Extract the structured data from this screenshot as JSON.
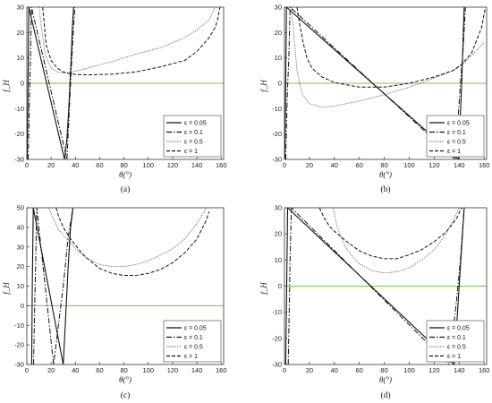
{
  "colors": {
    "zero_line": "#7cc04a",
    "axis": "#333333"
  },
  "legend_entries": [
    "ε = 0.05",
    "ε = 0.1",
    "ε = 0.5",
    "ε = 1"
  ],
  "chart_data": [
    {
      "type": "line",
      "panel_label": "(a)",
      "xlabel": "θ(°)",
      "ylabel": "f_H",
      "xlim": [
        0,
        162
      ],
      "ylim": [
        -30,
        30
      ],
      "xticks": [
        "0",
        "20",
        "40",
        "60",
        "80",
        "100",
        "120",
        "140",
        "160"
      ],
      "yticks": [
        "-30",
        "-20",
        "-10",
        "0",
        "10",
        "20",
        "30"
      ],
      "zero_line": true,
      "grid": false,
      "legend_position": "bottom-right",
      "series": [
        {
          "name": "ε = 0.05",
          "x": [
            0.2,
            0.8,
            1.6,
            31,
            33,
            34.5,
            35.5,
            36.5,
            37.5,
            38.5
          ],
          "y": [
            -30,
            -10,
            30,
            -30,
            -22,
            -10,
            0,
            10,
            22,
            30
          ]
        },
        {
          "name": "ε = 0.1",
          "x": [
            1,
            1.3,
            2.0,
            3.0,
            3.8,
            33,
            34.5,
            35.5,
            36.5,
            38,
            39.5
          ],
          "y": [
            -30,
            -25,
            -10,
            10,
            30,
            -30,
            -15,
            -5,
            5,
            18,
            30
          ]
        },
        {
          "name": "ε = 0.5",
          "x": [
            10,
            12,
            15,
            18,
            20,
            25,
            30,
            35,
            50,
            70,
            90,
            110,
            130,
            140,
            145,
            150,
            155
          ],
          "y": [
            30,
            22,
            12,
            8,
            6,
            4.5,
            4,
            4.2,
            6,
            8.5,
            11.5,
            14,
            18,
            21,
            23,
            25,
            30
          ]
        },
        {
          "name": "ε = 1",
          "x": [
            13,
            16,
            20,
            25,
            30,
            35,
            40,
            50,
            70,
            90,
            110,
            130,
            140,
            150,
            155,
            157,
            159
          ],
          "y": [
            30,
            15,
            9,
            6,
            4.5,
            3.8,
            3.5,
            3.3,
            3.6,
            4.5,
            6.5,
            9,
            12.5,
            18,
            22,
            25,
            30
          ]
        }
      ]
    },
    {
      "type": "line",
      "panel_label": "(b)",
      "xlabel": "θ(°)",
      "ylabel": "f_H",
      "xlim": [
        0,
        162
      ],
      "ylim": [
        -30,
        30
      ],
      "xticks": [
        "0",
        "20",
        "40",
        "60",
        "80",
        "100",
        "120",
        "140",
        "160"
      ],
      "yticks": [
        "-30",
        "-20",
        "-10",
        "0",
        "10",
        "20",
        "30"
      ],
      "zero_line": true,
      "grid": false,
      "legend_position": "bottom-right",
      "series": [
        {
          "name": "ε = 0.05",
          "x": [
            0.2,
            0.8,
            1.6,
            139.5,
            141,
            142,
            143,
            144
          ],
          "y": [
            -30,
            -10,
            30,
            -30,
            -12,
            0,
            15,
            30
          ]
        },
        {
          "name": "ε = 0.1",
          "x": [
            1,
            1.5,
            2.2,
            3.5,
            4.5,
            137,
            139,
            141,
            143,
            145
          ],
          "y": [
            -30,
            -20,
            -5,
            10,
            30,
            -30,
            -15,
            0,
            12,
            30
          ]
        },
        {
          "name": "ε = 0.5",
          "x": [
            5.5,
            7,
            10,
            14,
            20,
            30,
            40,
            60,
            80,
            100,
            120,
            135,
            142,
            150,
            160
          ],
          "y": [
            30,
            22,
            5,
            -4,
            -8,
            -9.5,
            -9,
            -7,
            -4.5,
            -1.5,
            2,
            5,
            7,
            11,
            16
          ]
        },
        {
          "name": "ε = 1",
          "x": [
            10,
            12,
            15,
            18,
            22,
            30,
            40,
            60,
            80,
            100,
            120,
            135,
            142,
            150,
            158,
            161
          ],
          "y": [
            30,
            24,
            16,
            10,
            6,
            2.5,
            0.3,
            -1.5,
            -1.5,
            0,
            2.5,
            5,
            7.5,
            12,
            22,
            30
          ]
        }
      ]
    },
    {
      "type": "line",
      "panel_label": "(c)",
      "xlabel": "θ(°)",
      "ylabel": "f_H",
      "xlim": [
        0,
        162
      ],
      "ylim": [
        -30,
        50
      ],
      "xticks": [
        "0",
        "20",
        "40",
        "60",
        "80",
        "100",
        "120",
        "140",
        "160"
      ],
      "yticks": [
        "-30",
        "-20",
        "-10",
        "0",
        "10",
        "20",
        "30",
        "40",
        "50"
      ],
      "zero_line": true,
      "grid": false,
      "legend_position": "bottom-right",
      "series": [
        {
          "name": "ε = 0.05",
          "x": [
            4,
            4.5,
            5.3,
            30,
            32,
            34,
            36,
            38
          ],
          "y": [
            -30,
            10,
            50,
            -30,
            -5,
            20,
            40,
            50
          ]
        },
        {
          "name": "ε = 0.1",
          "x": [
            5.5,
            6.5,
            7.2,
            8.2,
            22,
            26,
            30,
            34,
            38
          ],
          "y": [
            -30,
            0,
            20,
            50,
            -30,
            -10,
            10,
            35,
            50
          ]
        },
        {
          "name": "ε = 0.5",
          "x": [
            18,
            22,
            26,
            30,
            35,
            40,
            50,
            60,
            70,
            80,
            90,
            100,
            110,
            120,
            130,
            140,
            145,
            148
          ],
          "y": [
            50,
            44,
            39,
            36,
            33,
            29,
            24,
            21,
            20,
            20,
            21,
            23,
            26,
            29,
            34,
            42,
            47,
            50
          ]
        },
        {
          "name": "ε = 1",
          "x": [
            24,
            26,
            30,
            35,
            40,
            45,
            50,
            60,
            70,
            80,
            90,
            100,
            110,
            120,
            130,
            140,
            148,
            150
          ],
          "y": [
            50,
            46,
            40,
            35,
            31,
            27,
            24,
            19,
            16.5,
            15.5,
            15.5,
            16.5,
            18.5,
            22,
            27,
            34,
            44,
            48
          ]
        }
      ]
    },
    {
      "type": "line",
      "panel_label": "(d)",
      "xlabel": "θ(°)",
      "ylabel": "f_H",
      "xlim": [
        0,
        162
      ],
      "ylim": [
        -30,
        30
      ],
      "xticks": [
        "0",
        "20",
        "40",
        "60",
        "80",
        "100",
        "120",
        "140",
        "160"
      ],
      "yticks": [
        "-30",
        "-20",
        "-10",
        "0",
        "10",
        "20",
        "30"
      ],
      "zero_line": true,
      "grid": false,
      "legend_position": "bottom-right",
      "series": [
        {
          "name": "ε = 0.05",
          "x": [
            1,
            1.8,
            2.5,
            136,
            138,
            140,
            142,
            144
          ],
          "y": [
            -30,
            0,
            30,
            -30,
            -15,
            0,
            15,
            30
          ]
        },
        {
          "name": "ε = 0.1",
          "x": [
            3,
            3.8,
            4.5,
            5.5,
            132,
            135,
            138,
            141,
            144
          ],
          "y": [
            -30,
            -10,
            10,
            30,
            -30,
            -18,
            -5,
            10,
            30
          ]
        },
        {
          "name": "ε = 0.5",
          "x": [
            39,
            42,
            46,
            50,
            55,
            60,
            70,
            80,
            90,
            100,
            110,
            120,
            128,
            135,
            140
          ],
          "y": [
            30,
            23,
            18,
            14,
            11,
            8.5,
            6,
            5,
            5.5,
            7,
            10,
            14,
            19,
            25,
            30
          ]
        },
        {
          "name": "ε = 1",
          "x": [
            28,
            32,
            36,
            40,
            45,
            50,
            60,
            70,
            80,
            90,
            100,
            110,
            120,
            130,
            138,
            142
          ],
          "y": [
            30,
            26,
            23,
            21,
            19,
            17,
            13.5,
            11.5,
            10.5,
            10.5,
            12,
            14,
            17,
            21,
            26,
            30
          ]
        }
      ]
    }
  ]
}
